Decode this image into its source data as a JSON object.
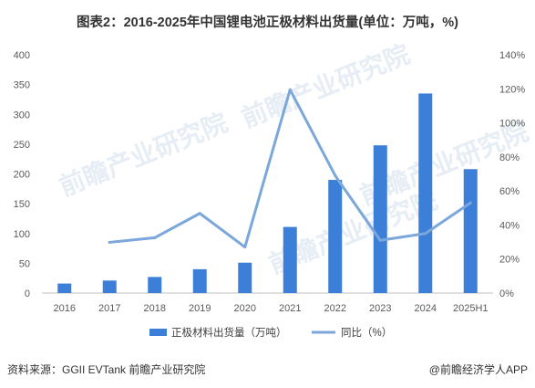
{
  "title": "图表2：2016-2025年中国锂电池正极材料出货量(单位：万吨，%)",
  "watermark": "前瞻产业研究院",
  "source": "资料来源：GGII  EVTank 前瞻产业研究院",
  "credit": "@前瞻经济学人APP",
  "chart_data": {
    "type": "bar",
    "categories": [
      "2016",
      "2017",
      "2018",
      "2019",
      "2020",
      "2021",
      "2022",
      "2023",
      "2024",
      "2025H1"
    ],
    "series": [
      {
        "name": "正极材料出货量（万吨）",
        "type": "bar",
        "axis": "left",
        "color": "#3c7fd9",
        "values": [
          16,
          21,
          27,
          40,
          51,
          111,
          190,
          248,
          335,
          208
        ]
      },
      {
        "name": "同比（%）",
        "type": "line",
        "axis": "right",
        "color": "#7ba7da",
        "values": [
          null,
          29.8,
          32.5,
          46.8,
          27.0,
          119.5,
          69.0,
          31.0,
          35.0,
          53.0
        ]
      }
    ],
    "y_left": {
      "min": 0,
      "max": 400,
      "step": 50,
      "ticks": [
        "0",
        "50",
        "100",
        "150",
        "200",
        "250",
        "300",
        "350",
        "400"
      ]
    },
    "y_right": {
      "min": 0,
      "max": 140,
      "step": 20,
      "ticks": [
        "0%",
        "20%",
        "40%",
        "60%",
        "80%",
        "100%",
        "120%",
        "140%"
      ]
    },
    "grid": false,
    "legend": "bottom"
  }
}
